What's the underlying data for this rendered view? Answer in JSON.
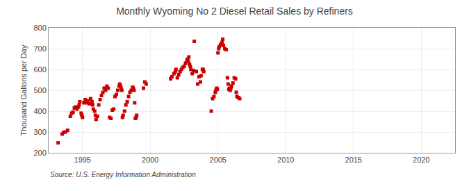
{
  "chart_data": {
    "type": "scatter",
    "title": "Monthly Wyoming No 2 Diesel Retail Sales by Refiners",
    "ylabel": "Thousand Gallons per Day",
    "annotations": [
      "Source: U.S. Energy Information Administration"
    ],
    "x": [
      1993.2,
      1993.5,
      1993.6,
      1993.75,
      1993.9,
      1994.1,
      1994.2,
      1994.3,
      1994.4,
      1994.5,
      1994.6,
      1994.7,
      1994.75,
      1994.8,
      1994.9,
      1994.95,
      1995.0,
      1995.1,
      1995.2,
      1995.3,
      1995.4,
      1995.5,
      1995.6,
      1995.7,
      1995.75,
      1995.8,
      1995.9,
      1995.95,
      1996.0,
      1996.1,
      1996.2,
      1996.3,
      1996.4,
      1996.5,
      1996.6,
      1996.7,
      1996.75,
      1996.8,
      1996.9,
      1997.0,
      1997.1,
      1997.2,
      1997.3,
      1997.4,
      1997.5,
      1997.6,
      1997.7,
      1997.75,
      1997.8,
      1997.85,
      1997.9,
      1997.95,
      1998.0,
      1998.1,
      1998.2,
      1998.3,
      1998.4,
      1998.5,
      1998.6,
      1998.7,
      1998.75,
      1998.8,
      1998.85,
      1998.9,
      1998.95,
      1999.0,
      1999.5,
      1999.6,
      1999.7,
      2001.5,
      2001.6,
      2001.75,
      2001.85,
      2001.9,
      2002.0,
      2002.1,
      2002.2,
      2002.3,
      2002.4,
      2002.5,
      2002.6,
      2002.7,
      2002.75,
      2002.8,
      2002.85,
      2002.9,
      2002.95,
      2003.0,
      2003.1,
      2003.2,
      2003.25,
      2003.4,
      2003.5,
      2003.6,
      2003.7,
      2003.75,
      2003.85,
      2003.9,
      2003.95,
      2004.5,
      2004.6,
      2004.7,
      2004.8,
      2004.85,
      2004.9,
      2004.95,
      2005.0,
      2005.05,
      2005.1,
      2005.2,
      2005.3,
      2005.35,
      2005.4,
      2005.5,
      2005.6,
      2005.7,
      2005.75,
      2005.8,
      2005.85,
      2005.9,
      2005.95,
      2006.0,
      2006.1,
      2006.2,
      2006.3,
      2006.35,
      2006.4,
      2006.5,
      2006.6
    ],
    "values": [
      248,
      290,
      298,
      300,
      308,
      375,
      390,
      395,
      415,
      420,
      410,
      420,
      430,
      445,
      390,
      380,
      370,
      440,
      455,
      440,
      450,
      435,
      460,
      445,
      430,
      410,
      400,
      380,
      360,
      375,
      430,
      455,
      475,
      490,
      510,
      500,
      510,
      520,
      510,
      370,
      365,
      405,
      410,
      470,
      480,
      500,
      520,
      530,
      520,
      510,
      500,
      370,
      380,
      400,
      430,
      445,
      470,
      490,
      500,
      515,
      510,
      500,
      440,
      365,
      370,
      380,
      510,
      540,
      530,
      555,
      565,
      580,
      590,
      600,
      560,
      575,
      590,
      600,
      610,
      615,
      630,
      640,
      650,
      640,
      660,
      625,
      615,
      600,
      580,
      595,
      735,
      590,
      530,
      565,
      540,
      570,
      600,
      600,
      590,
      400,
      460,
      470,
      490,
      500,
      510,
      505,
      680,
      700,
      710,
      720,
      730,
      745,
      715,
      700,
      695,
      560,
      530,
      505,
      510,
      500,
      510,
      520,
      535,
      560,
      555,
      490,
      470,
      465,
      460
    ],
    "color": "#cc0000",
    "marker": "square",
    "xlim": [
      1992.5,
      2022.5
    ],
    "ylim": [
      200,
      800
    ],
    "xticks": [
      1995,
      2000,
      2005,
      2010,
      2015,
      2020
    ],
    "yticks": [
      200,
      300,
      400,
      500,
      600,
      700,
      800
    ],
    "grid": true
  }
}
